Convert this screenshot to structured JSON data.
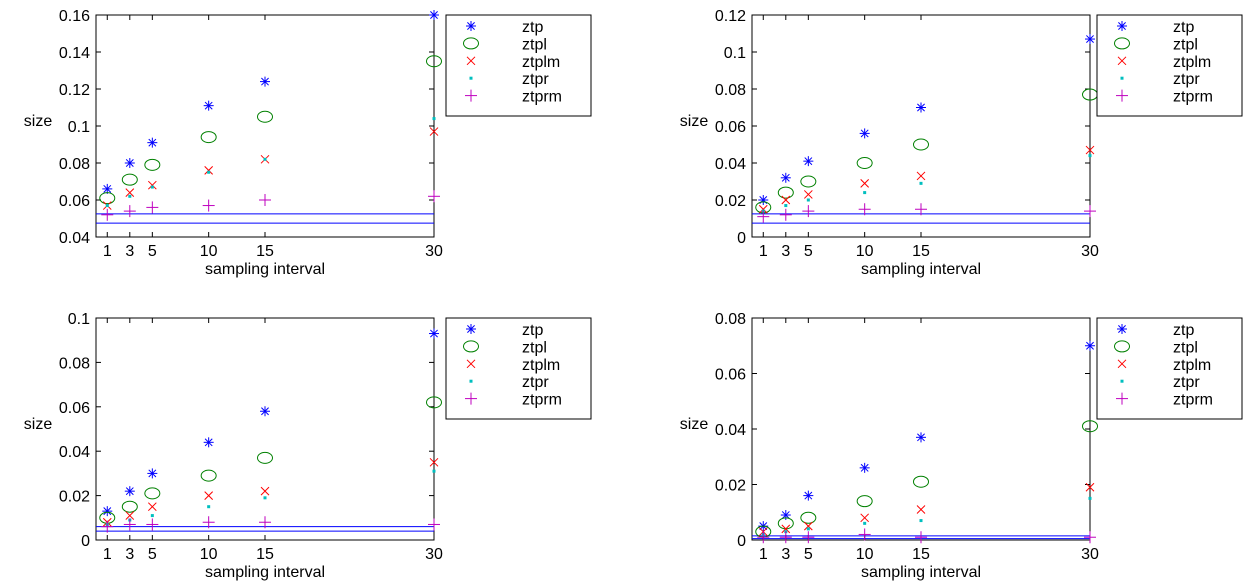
{
  "figure": {
    "marker_colors": {
      "ztp": "#0000ff",
      "ztpl": "#008000",
      "ztplm": "#ff0000",
      "ztpr": "#00bfbf",
      "ztprm": "#bf00bf"
    },
    "reference_line_color": "#0000ff"
  },
  "chart_data": [
    {
      "type": "scatter",
      "xlabel": "sampling interval",
      "ylabel": "size",
      "x_ticks": [
        1,
        3,
        5,
        10,
        15,
        30
      ],
      "xlim": [
        0,
        30
      ],
      "ylim": [
        0.04,
        0.16
      ],
      "y_ticks": [
        "0.04",
        "0.06",
        "0.08",
        "0.1",
        "0.12",
        "0.14",
        "0.16"
      ],
      "grid": false,
      "legend_position": "right",
      "x": [
        1,
        3,
        5,
        10,
        15,
        30
      ],
      "series": [
        {
          "name": "ztp",
          "marker": "asterisk",
          "values": [
            0.066,
            0.08,
            0.091,
            0.111,
            0.124,
            0.16
          ]
        },
        {
          "name": "ztpl",
          "marker": "circle",
          "values": [
            0.061,
            0.071,
            0.079,
            0.094,
            0.105,
            0.135
          ]
        },
        {
          "name": "ztplm",
          "marker": "x",
          "values": [
            0.057,
            0.064,
            0.068,
            0.076,
            0.082,
            0.097
          ]
        },
        {
          "name": "ztpr",
          "marker": "dot",
          "values": [
            0.057,
            0.062,
            0.067,
            0.075,
            0.082,
            0.104
          ]
        },
        {
          "name": "ztprm",
          "marker": "plus",
          "values": [
            0.052,
            0.054,
            0.056,
            0.057,
            0.06,
            0.062
          ]
        }
      ],
      "reference_lines": [
        0.0475,
        0.0525
      ]
    },
    {
      "type": "scatter",
      "xlabel": "sampling interval",
      "ylabel": "size",
      "x_ticks": [
        1,
        3,
        5,
        10,
        15,
        30
      ],
      "xlim": [
        0,
        30
      ],
      "ylim": [
        0,
        0.12
      ],
      "y_ticks": [
        "0",
        "0.02",
        "0.04",
        "0.06",
        "0.08",
        "0.1",
        "0.12"
      ],
      "grid": false,
      "legend_position": "right",
      "x": [
        1,
        3,
        5,
        10,
        15,
        30
      ],
      "series": [
        {
          "name": "ztp",
          "marker": "asterisk",
          "values": [
            0.02,
            0.032,
            0.041,
            0.056,
            0.07,
            0.107
          ]
        },
        {
          "name": "ztpl",
          "marker": "circle",
          "values": [
            0.016,
            0.024,
            0.03,
            0.04,
            0.05,
            0.077
          ]
        },
        {
          "name": "ztplm",
          "marker": "x",
          "values": [
            0.015,
            0.02,
            0.023,
            0.029,
            0.033,
            0.047
          ]
        },
        {
          "name": "ztpr",
          "marker": "dot",
          "values": [
            0.014,
            0.017,
            0.02,
            0.024,
            0.029,
            0.044
          ]
        },
        {
          "name": "ztprm",
          "marker": "plus",
          "values": [
            0.011,
            0.012,
            0.014,
            0.015,
            0.015,
            0.014
          ]
        }
      ],
      "reference_lines": [
        0.0075,
        0.0125
      ]
    },
    {
      "type": "scatter",
      "xlabel": "sampling interval",
      "ylabel": "size",
      "x_ticks": [
        1,
        3,
        5,
        10,
        15,
        30
      ],
      "xlim": [
        0,
        30
      ],
      "ylim": [
        0,
        0.1
      ],
      "y_ticks": [
        "0",
        "0.02",
        "0.04",
        "0.06",
        "0.08",
        "0.1"
      ],
      "grid": false,
      "legend_position": "right",
      "x": [
        1,
        3,
        5,
        10,
        15,
        30
      ],
      "series": [
        {
          "name": "ztp",
          "marker": "asterisk",
          "values": [
            0.013,
            0.022,
            0.03,
            0.044,
            0.058,
            0.093
          ]
        },
        {
          "name": "ztpl",
          "marker": "circle",
          "values": [
            0.01,
            0.015,
            0.021,
            0.029,
            0.037,
            0.062
          ]
        },
        {
          "name": "ztplm",
          "marker": "x",
          "values": [
            0.008,
            0.011,
            0.015,
            0.02,
            0.022,
            0.035
          ]
        },
        {
          "name": "ztpr",
          "marker": "dot",
          "values": [
            0.007,
            0.009,
            0.011,
            0.015,
            0.019,
            0.031
          ]
        },
        {
          "name": "ztprm",
          "marker": "plus",
          "values": [
            0.006,
            0.007,
            0.007,
            0.008,
            0.008,
            0.007
          ]
        }
      ],
      "reference_lines": [
        0.004,
        0.006
      ]
    },
    {
      "type": "scatter",
      "xlabel": "sampling interval",
      "ylabel": "size",
      "x_ticks": [
        1,
        3,
        5,
        10,
        15,
        30
      ],
      "xlim": [
        0,
        30
      ],
      "ylim": [
        0,
        0.08
      ],
      "y_ticks": [
        "0",
        "0.02",
        "0.04",
        "0.06",
        "0.08"
      ],
      "grid": false,
      "legend_position": "right",
      "x": [
        1,
        3,
        5,
        10,
        15,
        30
      ],
      "series": [
        {
          "name": "ztp",
          "marker": "asterisk",
          "values": [
            0.005,
            0.009,
            0.016,
            0.026,
            0.037,
            0.07
          ]
        },
        {
          "name": "ztpl",
          "marker": "circle",
          "values": [
            0.003,
            0.006,
            0.008,
            0.014,
            0.021,
            0.041
          ]
        },
        {
          "name": "ztplm",
          "marker": "x",
          "values": [
            0.003,
            0.004,
            0.005,
            0.008,
            0.011,
            0.019
          ]
        },
        {
          "name": "ztpr",
          "marker": "dot",
          "values": [
            0.002,
            0.003,
            0.004,
            0.006,
            0.007,
            0.015
          ]
        },
        {
          "name": "ztprm",
          "marker": "plus",
          "values": [
            0.001,
            0.001,
            0.001,
            0.002,
            0.001,
            0.001
          ]
        }
      ],
      "reference_lines": [
        0.0005,
        0.0015
      ]
    }
  ]
}
